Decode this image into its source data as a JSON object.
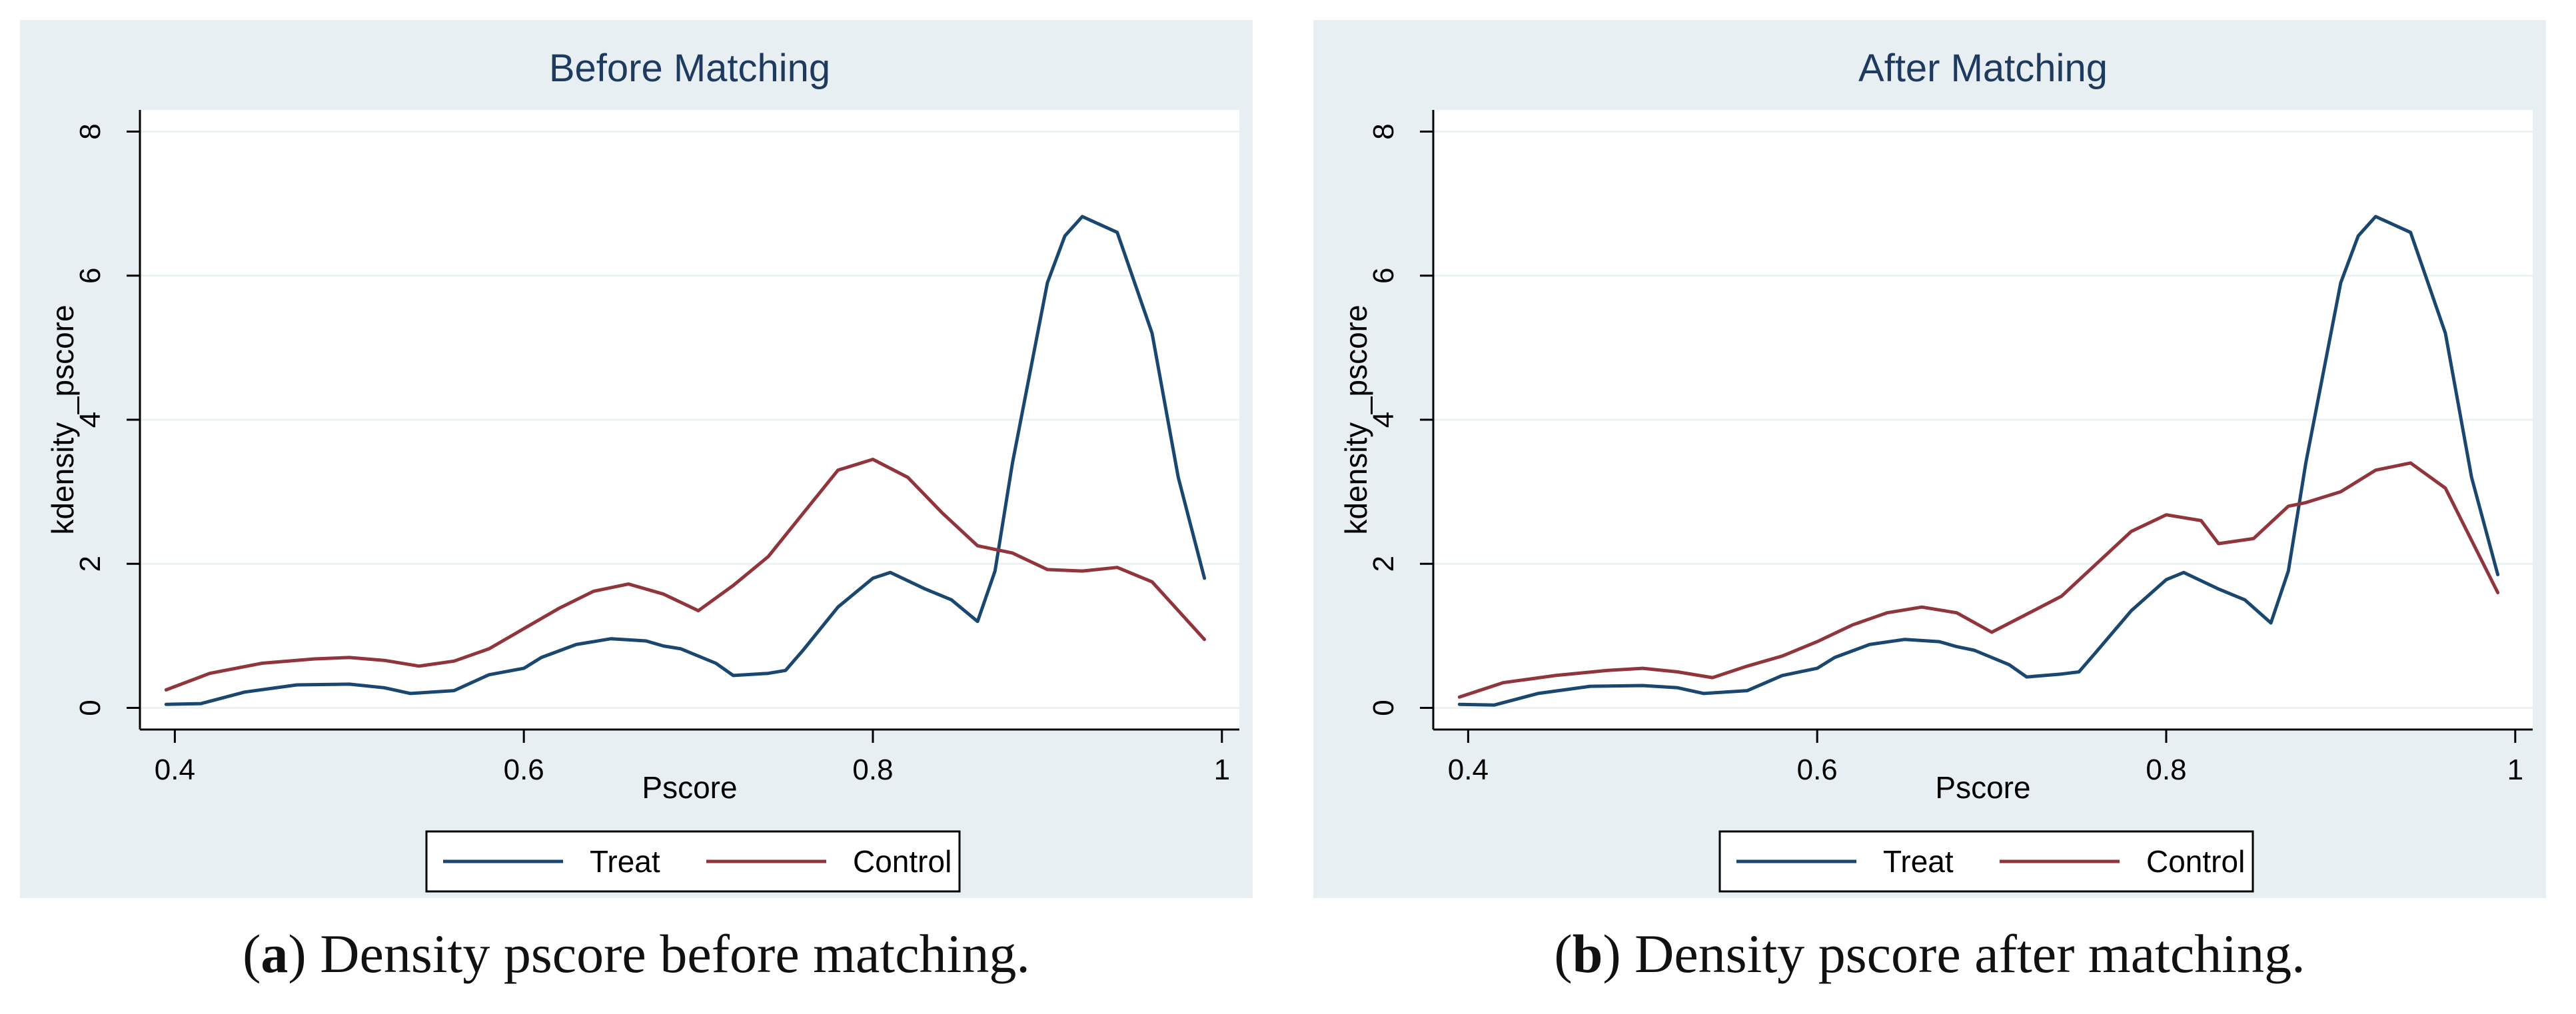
{
  "colors": {
    "treat": "#1a476f",
    "control": "#90353b",
    "panel_bg": "#e8eff2",
    "plot_bg": "#ffffff",
    "grid": "#eaf2f3",
    "axis": "#000000"
  },
  "captions": [
    {
      "label": "a",
      "text": ") Density pscore before matching."
    },
    {
      "label": "b",
      "text": ") Density pscore after matching."
    }
  ],
  "chart_data": [
    {
      "type": "line",
      "title": "Before Matching",
      "xlabel": "Pscore",
      "ylabel": "kdensity _pscore",
      "xlim": [
        0.38,
        1.01
      ],
      "ylim": [
        -0.3,
        8.3
      ],
      "xticks": [
        "0.4",
        "0.6",
        "0.8",
        "1"
      ],
      "yticks": [
        "0",
        "2",
        "4",
        "6",
        "8"
      ],
      "legend": [
        "Treat",
        "Control"
      ],
      "legend_position": "bottom",
      "series": [
        {
          "name": "Treat",
          "x": [
            0.395,
            0.415,
            0.44,
            0.47,
            0.5,
            0.52,
            0.535,
            0.56,
            0.58,
            0.6,
            0.61,
            0.63,
            0.65,
            0.67,
            0.68,
            0.69,
            0.71,
            0.72,
            0.74,
            0.75,
            0.76,
            0.78,
            0.8,
            0.81,
            0.83,
            0.845,
            0.86,
            0.87,
            0.88,
            0.9,
            0.91,
            0.92,
            0.94,
            0.96,
            0.975,
            0.99
          ],
          "y": [
            0.05,
            0.06,
            0.22,
            0.32,
            0.33,
            0.28,
            0.2,
            0.24,
            0.46,
            0.55,
            0.7,
            0.88,
            0.96,
            0.93,
            0.86,
            0.82,
            0.62,
            0.45,
            0.48,
            0.52,
            0.8,
            1.4,
            1.8,
            1.88,
            1.65,
            1.5,
            1.2,
            1.9,
            3.4,
            5.9,
            6.55,
            6.82,
            6.6,
            5.2,
            3.2,
            1.8
          ]
        },
        {
          "name": "Control",
          "x": [
            0.395,
            0.42,
            0.45,
            0.48,
            0.5,
            0.52,
            0.54,
            0.56,
            0.58,
            0.6,
            0.62,
            0.64,
            0.66,
            0.68,
            0.7,
            0.72,
            0.74,
            0.76,
            0.78,
            0.8,
            0.82,
            0.84,
            0.86,
            0.88,
            0.9,
            0.92,
            0.94,
            0.96,
            0.99
          ],
          "y": [
            0.25,
            0.48,
            0.62,
            0.68,
            0.7,
            0.66,
            0.58,
            0.65,
            0.82,
            1.1,
            1.38,
            1.62,
            1.72,
            1.58,
            1.35,
            1.7,
            2.1,
            2.7,
            3.3,
            3.45,
            3.2,
            2.7,
            2.25,
            2.15,
            1.92,
            1.9,
            1.95,
            1.75,
            0.95
          ]
        }
      ]
    },
    {
      "type": "line",
      "title": "After Matching",
      "xlabel": "Pscore",
      "ylabel": "kdensity _pscore",
      "xlim": [
        0.38,
        1.01
      ],
      "ylim": [
        -0.3,
        8.3
      ],
      "xticks": [
        "0.4",
        "0.6",
        "0.8",
        "1"
      ],
      "yticks": [
        "0",
        "2",
        "4",
        "6",
        "8"
      ],
      "legend": [
        "Treat",
        "Control"
      ],
      "legend_position": "bottom",
      "series": [
        {
          "name": "Treat",
          "x": [
            0.395,
            0.415,
            0.44,
            0.47,
            0.5,
            0.52,
            0.535,
            0.56,
            0.58,
            0.6,
            0.61,
            0.63,
            0.65,
            0.67,
            0.68,
            0.69,
            0.71,
            0.72,
            0.74,
            0.75,
            0.76,
            0.78,
            0.8,
            0.81,
            0.83,
            0.845,
            0.86,
            0.87,
            0.88,
            0.9,
            0.91,
            0.92,
            0.94,
            0.96,
            0.975,
            0.99
          ],
          "y": [
            0.05,
            0.04,
            0.2,
            0.3,
            0.31,
            0.28,
            0.2,
            0.24,
            0.45,
            0.55,
            0.7,
            0.88,
            0.95,
            0.92,
            0.85,
            0.8,
            0.6,
            0.43,
            0.47,
            0.5,
            0.78,
            1.35,
            1.78,
            1.88,
            1.65,
            1.5,
            1.18,
            1.9,
            3.4,
            5.9,
            6.55,
            6.82,
            6.6,
            5.2,
            3.2,
            1.85
          ]
        },
        {
          "name": "Control",
          "x": [
            0.395,
            0.42,
            0.45,
            0.48,
            0.5,
            0.52,
            0.54,
            0.56,
            0.58,
            0.6,
            0.62,
            0.64,
            0.66,
            0.68,
            0.7,
            0.72,
            0.74,
            0.76,
            0.78,
            0.8,
            0.82,
            0.83,
            0.85,
            0.87,
            0.88,
            0.9,
            0.92,
            0.94,
            0.96,
            0.99
          ],
          "y": [
            0.15,
            0.35,
            0.45,
            0.52,
            0.55,
            0.5,
            0.42,
            0.58,
            0.72,
            0.92,
            1.15,
            1.32,
            1.4,
            1.32,
            1.05,
            1.3,
            1.55,
            2.0,
            2.45,
            2.68,
            2.6,
            2.28,
            2.35,
            2.8,
            2.85,
            3.0,
            3.3,
            3.4,
            3.05,
            1.6
          ]
        }
      ]
    }
  ]
}
